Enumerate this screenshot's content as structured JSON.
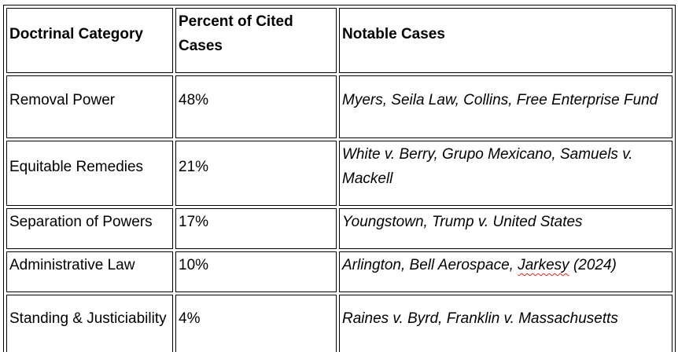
{
  "document": {
    "table": {
      "headers": [
        {
          "label": "Doctrinal Category"
        },
        {
          "label": "Percent of Cited Cases"
        },
        {
          "label": "Notable Cases"
        }
      ],
      "rows": [
        {
          "category": "Removal Power",
          "percent": "48%",
          "cases": [
            {
              "text": "Myers, Seila Law, Collins, Free Enterprise Fund"
            }
          ]
        },
        {
          "category": "Equitable Remedies",
          "percent": "21%",
          "cases": [
            {
              "text": "White v. Berry, Grupo Mexicano, Samuels v. Mackell"
            }
          ]
        },
        {
          "category": "Separation of Powers",
          "percent": "17%",
          "cases": [
            {
              "text": "Youngstown, Trump v. United States"
            }
          ]
        },
        {
          "category": "Administrative Law",
          "percent": "10%",
          "cases": [
            {
              "text": "Arlington, Bell Aerospace, "
            },
            {
              "text": "Jarkesy",
              "misspelled": true
            },
            {
              "text": " (2024)"
            }
          ]
        },
        {
          "category": "Standing & Justiciability",
          "percent": "4%",
          "cases": [
            {
              "text": "Raines v. Byrd, Franklin v. Massachusetts"
            }
          ]
        }
      ]
    },
    "colors": {
      "border": "#000000",
      "text": "#000000",
      "background": "#ffffff",
      "spellcheck_underline": "#e02b20"
    }
  }
}
